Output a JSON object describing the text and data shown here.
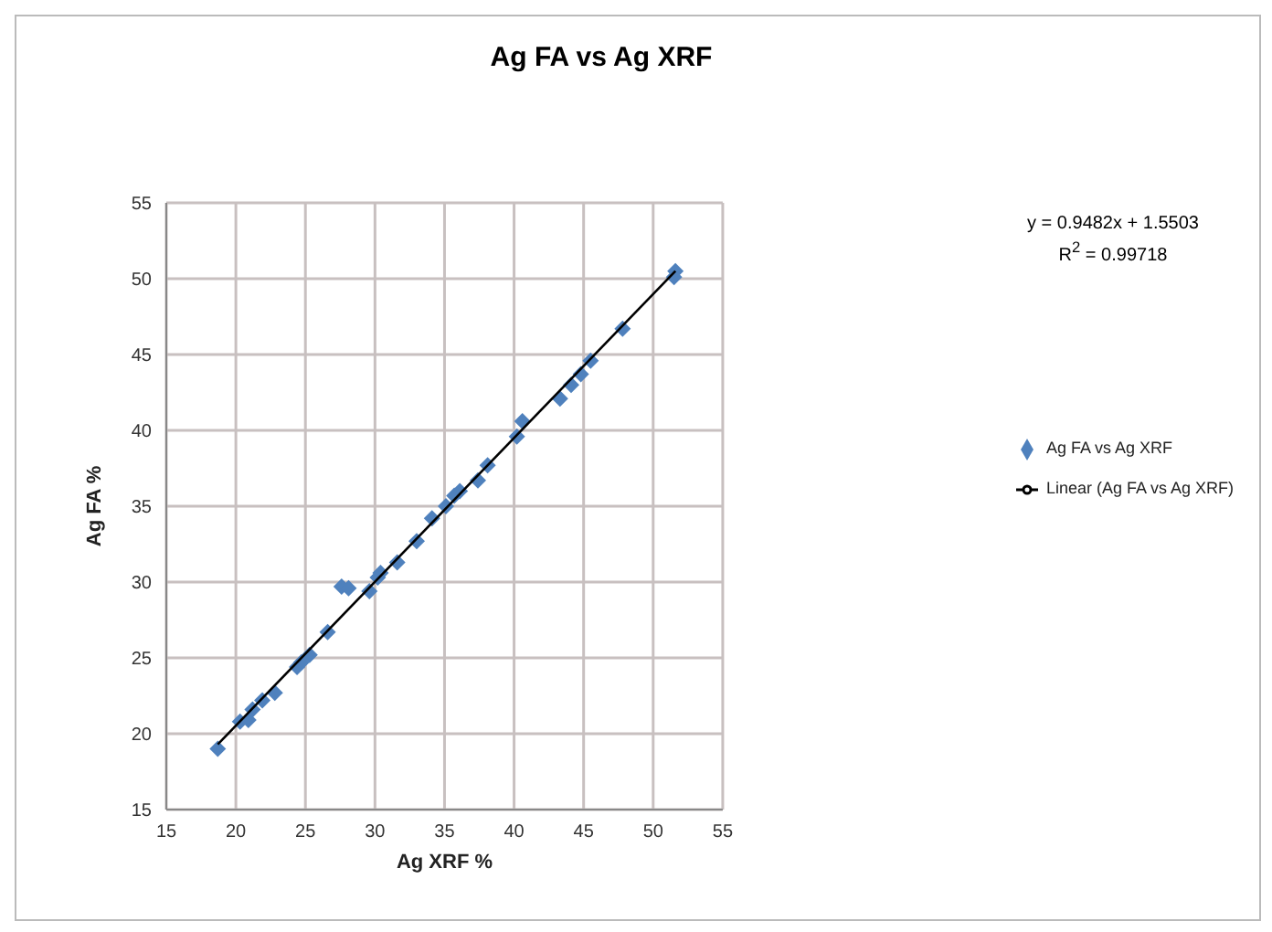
{
  "chart_data": {
    "type": "scatter",
    "title": "Ag FA vs Ag XRF",
    "xlabel": "Ag XRF %",
    "ylabel": "Ag FA %",
    "xlim": [
      15,
      55
    ],
    "xticks": [
      15,
      20,
      25,
      30,
      35,
      40,
      45,
      50,
      55
    ],
    "ylim": [
      15,
      55
    ],
    "yticks": [
      15,
      20,
      25,
      30,
      35,
      40,
      45,
      50,
      55
    ],
    "grid": true,
    "legend": "right",
    "annotations": [
      "y = 0.9482x + 1.5503",
      "R$^{2}$ = 0.99718"
    ],
    "series": [
      {
        "name": "Ag FA vs Ag XRF",
        "marker": "diamond",
        "color": "#4f81bd",
        "x": [
          18.7,
          20.3,
          20.9,
          21.2,
          21.9,
          22.8,
          24.4,
          24.7,
          25.3,
          26.6,
          27.6,
          28.1,
          29.6,
          30.2,
          30.4,
          31.6,
          33.0,
          34.1,
          35.1,
          35.7,
          36.1,
          37.4,
          38.1,
          40.2,
          40.6,
          43.3,
          44.1,
          44.8,
          45.5,
          47.8,
          51.5,
          51.6
        ],
        "values": [
          19.0,
          20.8,
          20.9,
          21.6,
          22.2,
          22.7,
          24.4,
          24.7,
          25.2,
          26.7,
          29.7,
          29.6,
          29.4,
          30.3,
          30.6,
          31.3,
          32.7,
          34.2,
          35.0,
          35.7,
          36.0,
          36.7,
          37.7,
          39.6,
          40.6,
          42.1,
          43.0,
          43.7,
          44.6,
          46.7,
          50.1,
          50.5
        ]
      },
      {
        "name": "Linear (Ag FA vs Ag XRF)",
        "type": "line",
        "color": "#000000",
        "x": [
          18.7,
          51.6
        ],
        "values": [
          19.3,
          50.5
        ]
      }
    ]
  }
}
